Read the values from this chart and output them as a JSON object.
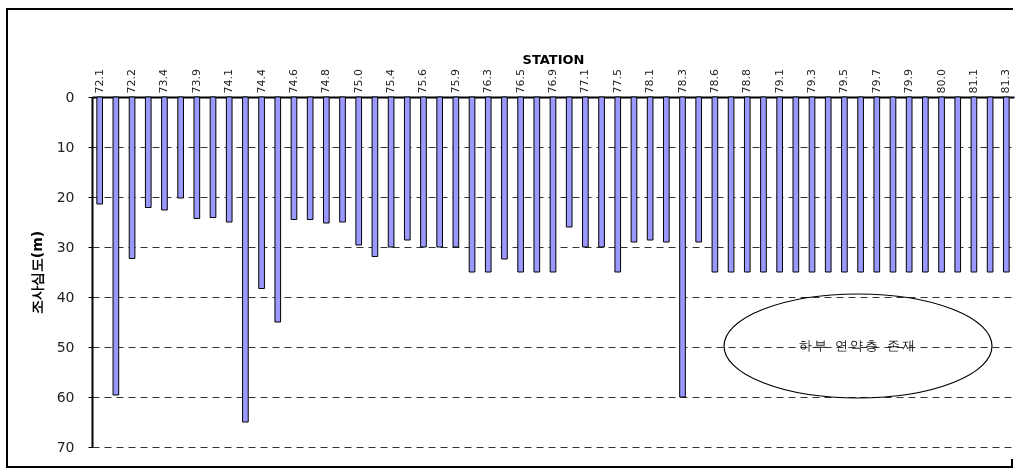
{
  "chart_data": {
    "type": "bar",
    "xlabel": "STATION",
    "ylabel": "조사심도(m)",
    "categories": [
      "72.1",
      null,
      "72.2",
      null,
      "73.4",
      null,
      "73.9",
      null,
      "74.1",
      null,
      "74.4",
      null,
      "74.6",
      null,
      "74.8",
      null,
      "75.0",
      null,
      "75.4",
      null,
      "75.6",
      null,
      "75.9",
      null,
      "76.3",
      null,
      "76.5",
      null,
      "76.9",
      null,
      "77.1",
      null,
      "77.5",
      null,
      "78.1",
      null,
      "78.3",
      null,
      "78.6",
      null,
      "78.8",
      null,
      "79.1",
      null,
      "79.3",
      null,
      "79.5",
      null,
      "79.7",
      null,
      "79.9",
      null,
      "80.0",
      null,
      "81.1",
      null,
      "81.3"
    ],
    "values": [
      21.4,
      59.6,
      32.3,
      22.1,
      22.6,
      20.2,
      24.3,
      24.1,
      25,
      65,
      38.3,
      45,
      24.5,
      24.5,
      25.2,
      25,
      29.6,
      31.9,
      30,
      28.6,
      30,
      30,
      30,
      35,
      35,
      32.4,
      35,
      35,
      35,
      26,
      30,
      30,
      35,
      29,
      28.6,
      29,
      60,
      29,
      35,
      35,
      35,
      35,
      35,
      35,
      35,
      35,
      35,
      35,
      35,
      35,
      35,
      35,
      35,
      35,
      35,
      35,
      35
    ],
    "color": "#9999ff",
    "ylim": [
      70,
      0
    ],
    "yticks": [
      0,
      10,
      20,
      30,
      40,
      50,
      60,
      70
    ],
    "grid": "y",
    "annotations": [
      "하부 연약층 존재"
    ]
  }
}
